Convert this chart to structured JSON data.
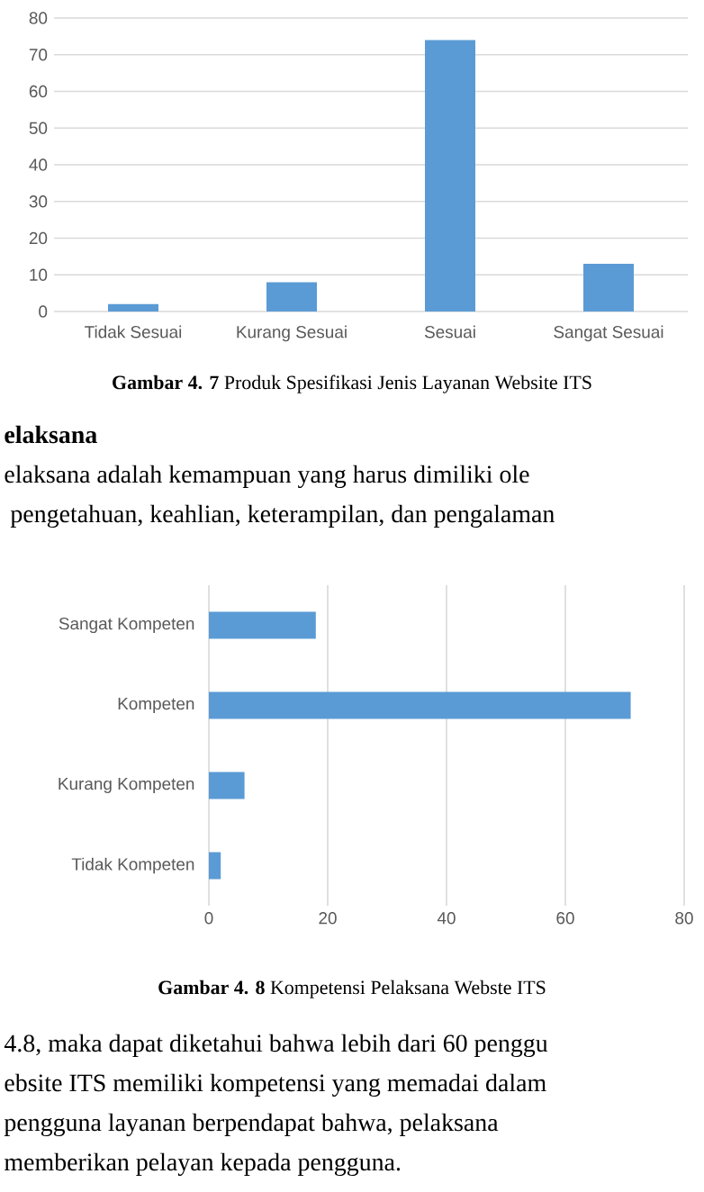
{
  "chart_data": [
    {
      "type": "bar",
      "title": "**Gambar 4. 7** Produk Spesifikasi Jenis Layanan Website ITS",
      "categories": [
        "Tidak Sesuai",
        "Kurang Sesuai",
        "Sesuai",
        "Sangat Sesuai"
      ],
      "values": [
        2,
        8,
        74,
        13
      ],
      "color": "#5b9bd5",
      "ylim": [
        0,
        80
      ],
      "yticks": [
        0,
        10,
        20,
        30,
        40,
        50,
        60,
        70,
        80
      ],
      "grid": "y",
      "annotations": [
        "elaksana",
        "elaksana adalah kemampuan yang harus dimiliki ole",
        " pengetahuan, keahlian, keterampilan, dan pengalaman"
      ]
    },
    {
      "type": "bar",
      "orientation": "horizontal",
      "title": "**Gambar 4. 8** Kompetensi Pelaksana Webste ITS",
      "categories": [
        "Sangat Kompeten",
        "Kompeten",
        "Kurang Kompeten",
        "Tidak Kompeten"
      ],
      "values": [
        18,
        71,
        6,
        2
      ],
      "color": "#5b9bd5",
      "xlim": [
        0,
        80
      ],
      "xticks": [
        0,
        20,
        40,
        60,
        80
      ],
      "grid": "x",
      "annotations": [
        "4.8, maka dapat diketahui bahwa lebih dari 60 penggu",
        "ebsite ITS memiliki kompetensi yang memadai dalam",
        "pengguna layanan berpendapat bahwa, pelaksana",
        "memberikan pelayan kepada pengguna."
      ]
    }
  ]
}
